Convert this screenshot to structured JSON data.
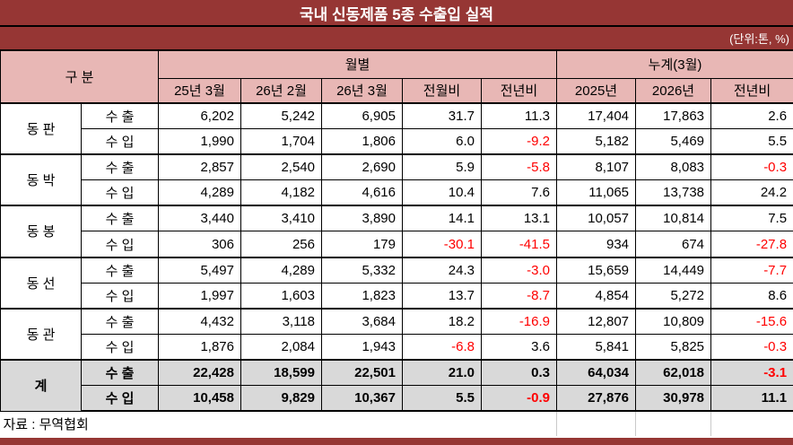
{
  "chart_data": {
    "type": "table",
    "title": "국내 신동제품 5종 수출입 실적",
    "unit_note": "(단위:톤, %)",
    "column_groups": {
      "group_label": "구 분",
      "monthly_label": "월별",
      "cumulative_label": "누계(3월)"
    },
    "sub_columns": [
      "25년 3월",
      "26년 2월",
      "26년 3월",
      "전월비",
      "전년비",
      "2025년",
      "2026년",
      "전년비"
    ],
    "groups": [
      {
        "name": "동 판",
        "is_total": false,
        "flows": [
          {
            "label": "수 출",
            "values": [
              "6,202",
              "5,242",
              "6,905",
              "31.7",
              "11.3",
              "17,404",
              "17,863",
              "2.6"
            ]
          },
          {
            "label": "수 입",
            "values": [
              "1,990",
              "1,704",
              "1,806",
              "6.0",
              "-9.2",
              "5,182",
              "5,469",
              "5.5"
            ]
          }
        ]
      },
      {
        "name": "동 박",
        "is_total": false,
        "flows": [
          {
            "label": "수 출",
            "values": [
              "2,857",
              "2,540",
              "2,690",
              "5.9",
              "-5.8",
              "8,107",
              "8,083",
              "-0.3"
            ]
          },
          {
            "label": "수 입",
            "values": [
              "4,289",
              "4,182",
              "4,616",
              "10.4",
              "7.6",
              "11,065",
              "13,738",
              "24.2"
            ]
          }
        ]
      },
      {
        "name": "동 봉",
        "is_total": false,
        "flows": [
          {
            "label": "수 출",
            "values": [
              "3,440",
              "3,410",
              "3,890",
              "14.1",
              "13.1",
              "10,057",
              "10,814",
              "7.5"
            ]
          },
          {
            "label": "수 입",
            "values": [
              "306",
              "256",
              "179",
              "-30.1",
              "-41.5",
              "934",
              "674",
              "-27.8"
            ]
          }
        ]
      },
      {
        "name": "동 선",
        "is_total": false,
        "flows": [
          {
            "label": "수 출",
            "values": [
              "5,497",
              "4,289",
              "5,332",
              "24.3",
              "-3.0",
              "15,659",
              "14,449",
              "-7.7"
            ]
          },
          {
            "label": "수 입",
            "values": [
              "1,997",
              "1,603",
              "1,823",
              "13.7",
              "-8.7",
              "4,854",
              "5,272",
              "8.6"
            ]
          }
        ]
      },
      {
        "name": "동 관",
        "is_total": false,
        "flows": [
          {
            "label": "수 출",
            "values": [
              "4,432",
              "3,118",
              "3,684",
              "18.2",
              "-16.9",
              "12,807",
              "10,809",
              "-15.6"
            ]
          },
          {
            "label": "수 입",
            "values": [
              "1,876",
              "2,084",
              "1,943",
              "-6.8",
              "3.6",
              "5,841",
              "5,825",
              "-0.3"
            ]
          }
        ]
      },
      {
        "name": "계",
        "is_total": true,
        "flows": [
          {
            "label": "수 출",
            "values": [
              "22,428",
              "18,599",
              "22,501",
              "21.0",
              "0.3",
              "64,034",
              "62,018",
              "-3.1"
            ]
          },
          {
            "label": "수 입",
            "values": [
              "10,458",
              "9,829",
              "10,367",
              "5.5",
              "-0.9",
              "27,876",
              "30,978",
              "11.1"
            ]
          }
        ]
      }
    ],
    "source": "자료 : 무역협회"
  },
  "colors": {
    "accent_dark_red": "#963634",
    "header_pink": "#E8B7B5",
    "total_gray": "#D9D9D9",
    "negative_red": "#FF0000"
  }
}
